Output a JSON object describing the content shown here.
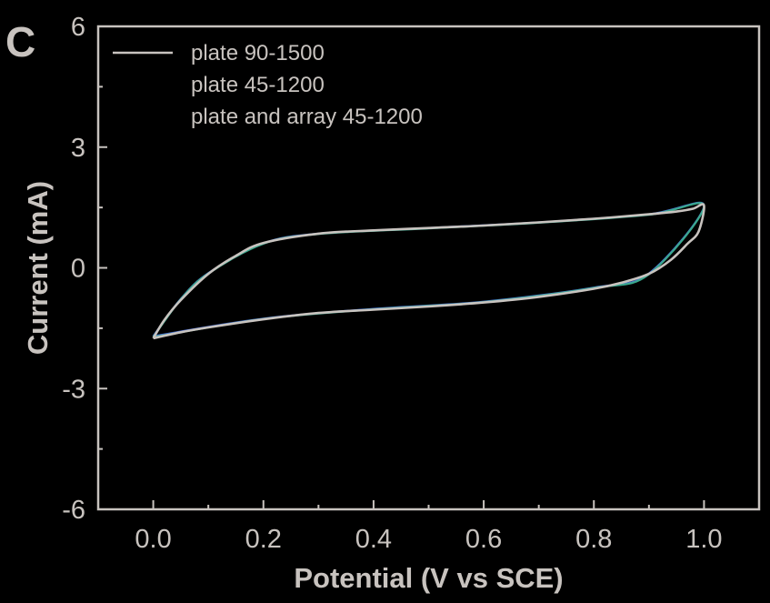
{
  "panel_label": "C",
  "colors": {
    "background": "#000000",
    "axis": "#c8c3bf",
    "text": "#c8c3bf"
  },
  "chart_data": {
    "type": "line",
    "xlabel": "Potential (V vs SCE)",
    "ylabel": "Current (mA)",
    "xlim": [
      -0.1,
      1.1
    ],
    "ylim": [
      -6,
      6
    ],
    "xticks": [
      0.0,
      0.2,
      0.4,
      0.6,
      0.8,
      1.0
    ],
    "xtick_labels": [
      "0.0",
      "0.2",
      "0.4",
      "0.6",
      "0.8",
      "1.0"
    ],
    "yticks": [
      -6,
      -3,
      0,
      3,
      6
    ],
    "ytick_labels": [
      "-6",
      "-3",
      "0",
      "3",
      "6"
    ],
    "grid": false,
    "legend_position": "top-left",
    "series": [
      {
        "name": "plate 90-1500",
        "color": "#c8c3bf",
        "x": [
          0.0,
          0.02,
          0.05,
          0.1,
          0.15,
          0.2,
          0.3,
          0.4,
          0.5,
          0.6,
          0.7,
          0.8,
          0.9,
          0.95,
          0.98,
          1.0,
          0.99,
          0.97,
          0.94,
          0.9,
          0.85,
          0.8,
          0.7,
          0.6,
          0.5,
          0.4,
          0.3,
          0.2,
          0.1,
          0.05,
          0.0
        ],
        "y": [
          -1.75,
          -1.3,
          -0.8,
          -0.15,
          0.3,
          0.62,
          0.85,
          0.93,
          0.99,
          1.05,
          1.13,
          1.22,
          1.33,
          1.4,
          1.47,
          1.55,
          0.9,
          0.6,
          0.2,
          -0.15,
          -0.37,
          -0.52,
          -0.72,
          -0.86,
          -0.96,
          -1.04,
          -1.12,
          -1.28,
          -1.48,
          -1.6,
          -1.75
        ]
      },
      {
        "name": "plate 45-1200",
        "color": "#3aa88e",
        "x": [
          0.0,
          0.05,
          0.1,
          0.2,
          0.3,
          0.5,
          0.7,
          0.9,
          1.0,
          0.9,
          0.8,
          0.6,
          0.4,
          0.2,
          0.0
        ],
        "y": [
          -1.72,
          -0.78,
          -0.14,
          0.6,
          0.84,
          0.98,
          1.12,
          1.32,
          1.53,
          -0.16,
          -0.5,
          -0.85,
          -1.03,
          -1.27,
          -1.72
        ]
      },
      {
        "name": "plate and array 45-1200",
        "color": "#4a6fd6",
        "x": [
          0.0,
          0.05,
          0.1,
          0.2,
          0.3,
          0.5,
          0.7,
          0.9,
          1.0,
          0.9,
          0.8,
          0.6,
          0.4,
          0.2,
          0.0
        ],
        "y": [
          -1.7,
          -0.77,
          -0.13,
          0.61,
          0.85,
          0.99,
          1.13,
          1.33,
          1.54,
          -0.14,
          -0.49,
          -0.84,
          -1.02,
          -1.26,
          -1.7
        ]
      }
    ]
  }
}
